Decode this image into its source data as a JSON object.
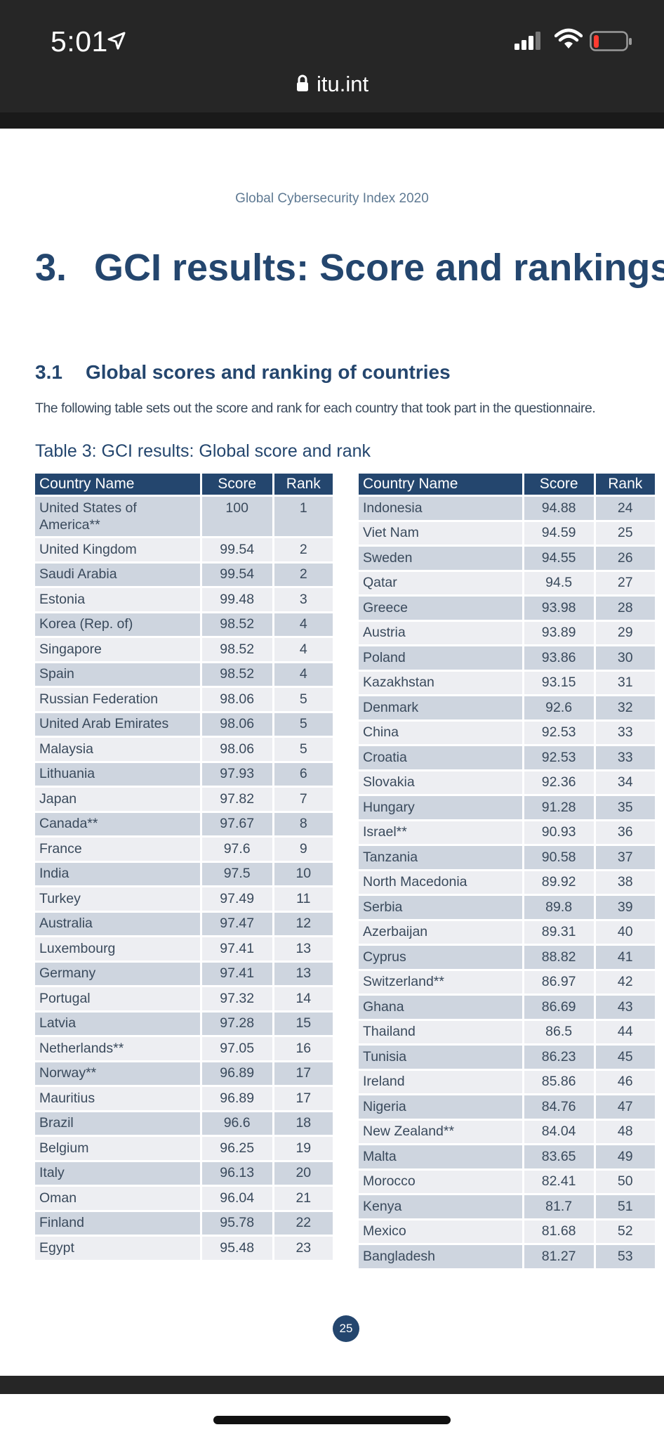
{
  "status_bar": {
    "time": "5:01",
    "icons": [
      "location-arrow-icon",
      "signal-icon",
      "wifi-icon",
      "battery-icon"
    ]
  },
  "browser": {
    "url": "itu.int"
  },
  "page": {
    "header": "Global Cybersecurity Index 2020",
    "chapter_number": "3.",
    "chapter_title": "GCI results: Score and rankings",
    "section_number": "3.1",
    "section_title": "Global scores and ranking of countries",
    "intro": "The following table sets out the score and rank for each country that took part in the questionnaire.",
    "table_caption": "Table 3: GCI results: Global score and rank",
    "columns": [
      "Country Name",
      "Score",
      "Rank"
    ],
    "left_rows": [
      [
        "United States of America**",
        "100",
        "1"
      ],
      [
        "United Kingdom",
        "99.54",
        "2"
      ],
      [
        "Saudi Arabia",
        "99.54",
        "2"
      ],
      [
        "Estonia",
        "99.48",
        "3"
      ],
      [
        "Korea (Rep. of)",
        "98.52",
        "4"
      ],
      [
        "Singapore",
        "98.52",
        "4"
      ],
      [
        "Spain",
        "98.52",
        "4"
      ],
      [
        "Russian Federation",
        "98.06",
        "5"
      ],
      [
        "United Arab Emirates",
        "98.06",
        "5"
      ],
      [
        "Malaysia",
        "98.06",
        "5"
      ],
      [
        "Lithuania",
        "97.93",
        "6"
      ],
      [
        "Japan",
        "97.82",
        "7"
      ],
      [
        "Canada**",
        "97.67",
        "8"
      ],
      [
        "France",
        "97.6",
        "9"
      ],
      [
        "India",
        "97.5",
        "10"
      ],
      [
        "Turkey",
        "97.49",
        "11"
      ],
      [
        "Australia",
        "97.47",
        "12"
      ],
      [
        "Luxembourg",
        "97.41",
        "13"
      ],
      [
        "Germany",
        "97.41",
        "13"
      ],
      [
        "Portugal",
        "97.32",
        "14"
      ],
      [
        "Latvia",
        "97.28",
        "15"
      ],
      [
        "Netherlands**",
        "97.05",
        "16"
      ],
      [
        "Norway**",
        "96.89",
        "17"
      ],
      [
        "Mauritius",
        "96.89",
        "17"
      ],
      [
        "Brazil",
        "96.6",
        "18"
      ],
      [
        "Belgium",
        "96.25",
        "19"
      ],
      [
        "Italy",
        "96.13",
        "20"
      ],
      [
        "Oman",
        "96.04",
        "21"
      ],
      [
        "Finland",
        "95.78",
        "22"
      ],
      [
        "Egypt",
        "95.48",
        "23"
      ]
    ],
    "right_rows": [
      [
        "Indonesia",
        "94.88",
        "24"
      ],
      [
        "Viet Nam",
        "94.59",
        "25"
      ],
      [
        "Sweden",
        "94.55",
        "26"
      ],
      [
        "Qatar",
        "94.5",
        "27"
      ],
      [
        "Greece",
        "93.98",
        "28"
      ],
      [
        "Austria",
        "93.89",
        "29"
      ],
      [
        "Poland",
        "93.86",
        "30"
      ],
      [
        "Kazakhstan",
        "93.15",
        "31"
      ],
      [
        "Denmark",
        "92.6",
        "32"
      ],
      [
        "China",
        "92.53",
        "33"
      ],
      [
        "Croatia",
        "92.53",
        "33"
      ],
      [
        "Slovakia",
        "92.36",
        "34"
      ],
      [
        "Hungary",
        "91.28",
        "35"
      ],
      [
        "Israel**",
        "90.93",
        "36"
      ],
      [
        "Tanzania",
        "90.58",
        "37"
      ],
      [
        "North Macedonia",
        "89.92",
        "38"
      ],
      [
        "Serbia",
        "89.8",
        "39"
      ],
      [
        "Azerbaijan",
        "89.31",
        "40"
      ],
      [
        "Cyprus",
        "88.82",
        "41"
      ],
      [
        "Switzerland**",
        "86.97",
        "42"
      ],
      [
        "Ghana",
        "86.69",
        "43"
      ],
      [
        "Thailand",
        "86.5",
        "44"
      ],
      [
        "Tunisia",
        "86.23",
        "45"
      ],
      [
        "Ireland",
        "85.86",
        "46"
      ],
      [
        "Nigeria",
        "84.76",
        "47"
      ],
      [
        "New Zealand**",
        "84.04",
        "48"
      ],
      [
        "Malta",
        "83.65",
        "49"
      ],
      [
        "Morocco",
        "82.41",
        "50"
      ],
      [
        "Kenya",
        "81.7",
        "51"
      ],
      [
        "Mexico",
        "81.68",
        "52"
      ],
      [
        "Bangladesh",
        "81.27",
        "53"
      ]
    ],
    "page_number": "25"
  },
  "colors": {
    "navy": "#24466e",
    "row_odd": "#ced5df",
    "row_even": "#edeef2",
    "chrome": "#262626"
  }
}
